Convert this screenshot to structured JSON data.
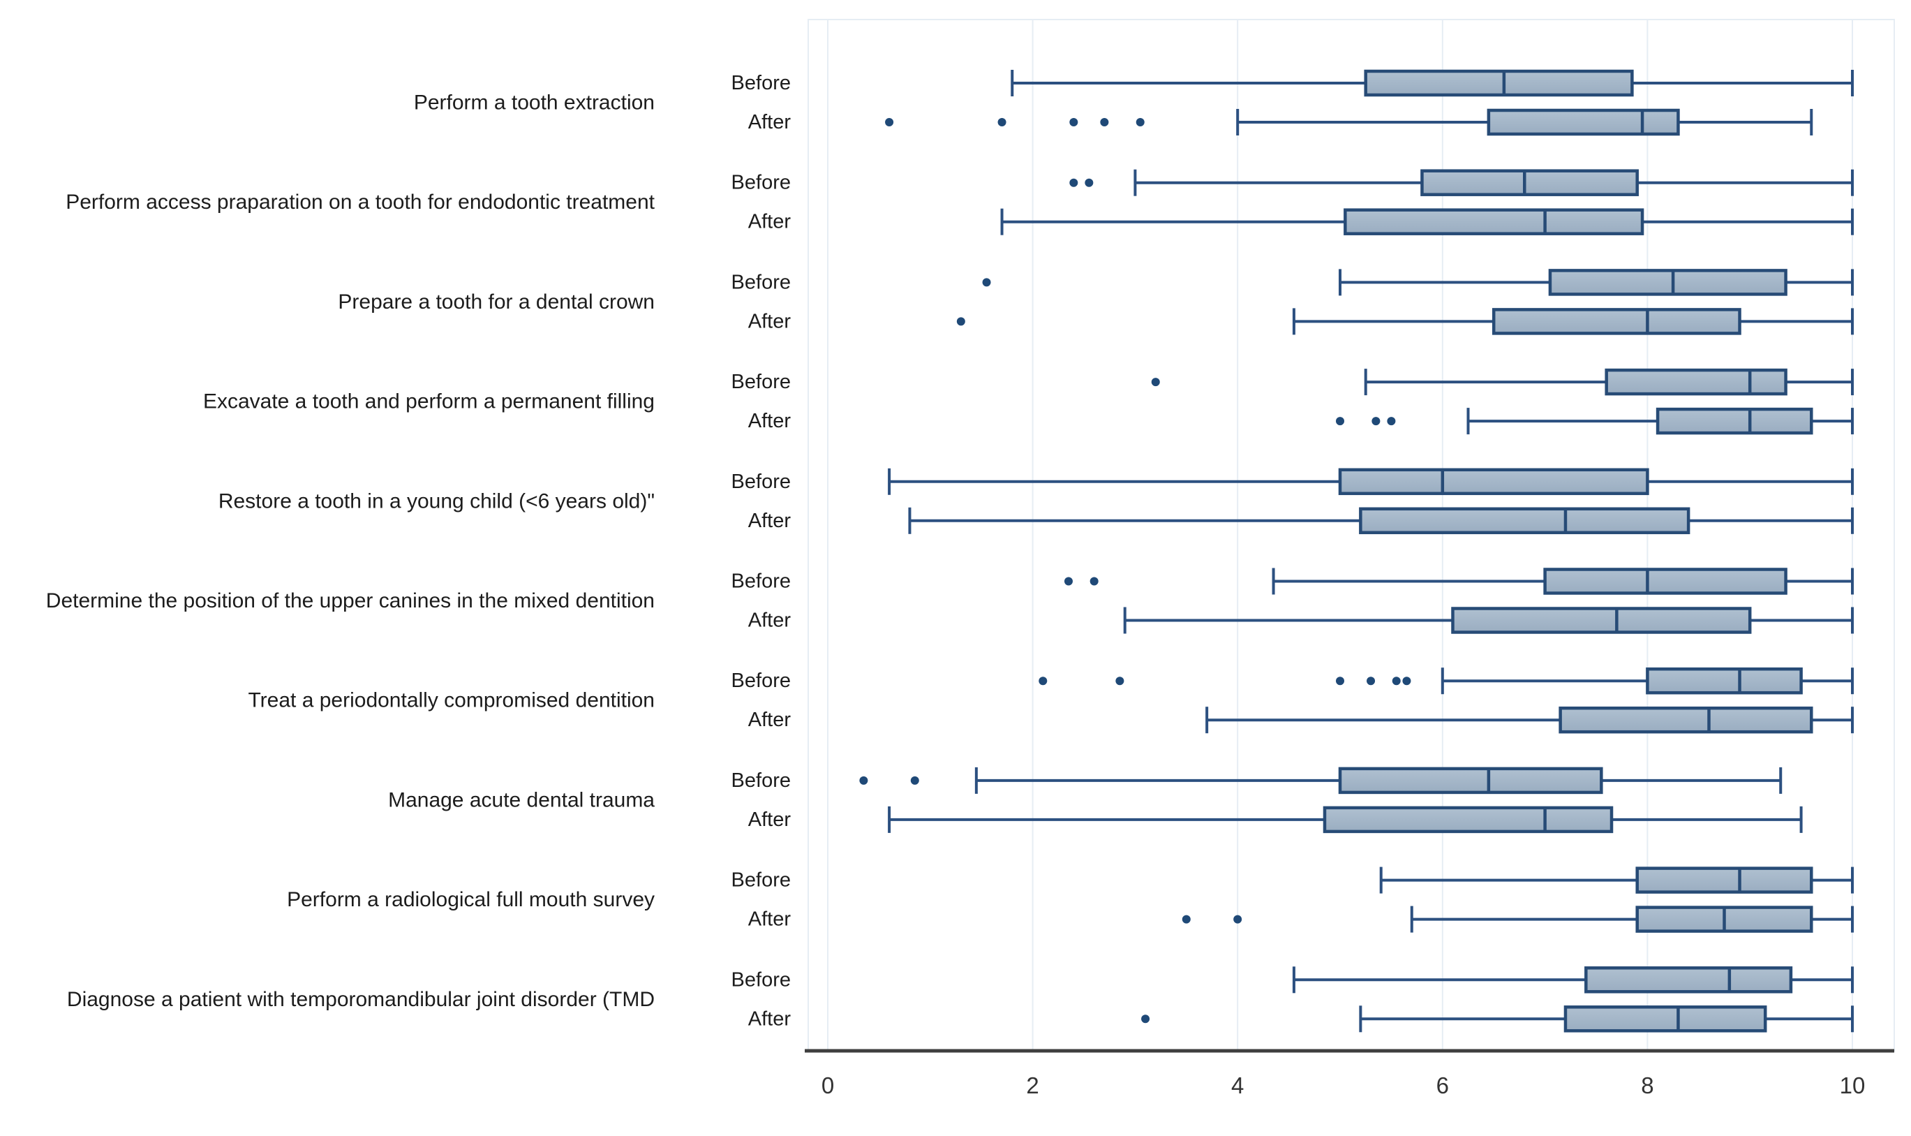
{
  "chart_data": {
    "type": "boxplot",
    "orientation": "horizontal",
    "title": "",
    "xlabel": "",
    "ylabel": "",
    "xlim": [
      0,
      10
    ],
    "xticks": [
      0,
      2,
      4,
      6,
      8,
      10
    ],
    "xtick_labels": [
      "0",
      "2",
      "4",
      "6",
      "8",
      "10"
    ],
    "grid": "vertical-light",
    "group_labels": {
      "before": "Before",
      "after": "After"
    },
    "categories": [
      {
        "label": "Perform a tooth extraction",
        "before": {
          "whisker_low": 1.8,
          "q1": 5.25,
          "median": 6.6,
          "q3": 7.85,
          "whisker_high": 10.0,
          "outliers": []
        },
        "after": {
          "whisker_low": 4.0,
          "q1": 6.45,
          "median": 7.95,
          "q3": 8.3,
          "whisker_high": 9.6,
          "outliers": [
            0.6,
            1.7,
            2.4,
            2.7,
            3.05
          ]
        }
      },
      {
        "label": "Perform access praparation on a tooth for endodontic treatment",
        "before": {
          "whisker_low": 3.0,
          "q1": 5.8,
          "median": 6.8,
          "q3": 7.9,
          "whisker_high": 10.0,
          "outliers": [
            2.4,
            2.55
          ]
        },
        "after": {
          "whisker_low": 1.7,
          "q1": 5.05,
          "median": 7.0,
          "q3": 7.95,
          "whisker_high": 10.0,
          "outliers": []
        }
      },
      {
        "label": "Prepare a tooth for a dental crown",
        "before": {
          "whisker_low": 5.0,
          "q1": 7.05,
          "median": 8.25,
          "q3": 9.35,
          "whisker_high": 10.0,
          "outliers": [
            1.55
          ]
        },
        "after": {
          "whisker_low": 4.55,
          "q1": 6.5,
          "median": 8.0,
          "q3": 8.9,
          "whisker_high": 10.0,
          "outliers": [
            1.3
          ]
        }
      },
      {
        "label": "Excavate a tooth and perform a permanent filling",
        "before": {
          "whisker_low": 5.25,
          "q1": 7.6,
          "median": 9.0,
          "q3": 9.35,
          "whisker_high": 10.0,
          "outliers": [
            3.2
          ]
        },
        "after": {
          "whisker_low": 6.25,
          "q1": 8.1,
          "median": 9.0,
          "q3": 9.6,
          "whisker_high": 10.0,
          "outliers": [
            5.0,
            5.35,
            5.5
          ]
        }
      },
      {
        "label": "Restore a tooth in a young child (<6 years old)\"",
        "before": {
          "whisker_low": 0.6,
          "q1": 5.0,
          "median": 6.0,
          "q3": 8.0,
          "whisker_high": 10.0,
          "outliers": []
        },
        "after": {
          "whisker_low": 0.8,
          "q1": 5.2,
          "median": 7.2,
          "q3": 8.4,
          "whisker_high": 10.0,
          "outliers": []
        }
      },
      {
        "label": "Determine the position of the upper canines in the mixed dentition",
        "before": {
          "whisker_low": 4.35,
          "q1": 7.0,
          "median": 8.0,
          "q3": 9.35,
          "whisker_high": 10.0,
          "outliers": [
            2.35,
            2.6
          ]
        },
        "after": {
          "whisker_low": 2.9,
          "q1": 6.1,
          "median": 7.7,
          "q3": 9.0,
          "whisker_high": 10.0,
          "outliers": []
        }
      },
      {
        "label": "Treat a periodontally compromised dentition",
        "before": {
          "whisker_low": 6.0,
          "q1": 8.0,
          "median": 8.9,
          "q3": 9.5,
          "whisker_high": 10.0,
          "outliers": [
            2.1,
            2.85,
            5.0,
            5.3,
            5.55,
            5.65
          ]
        },
        "after": {
          "whisker_low": 3.7,
          "q1": 7.15,
          "median": 8.6,
          "q3": 9.6,
          "whisker_high": 10.0,
          "outliers": []
        }
      },
      {
        "label": "Manage acute dental trauma",
        "before": {
          "whisker_low": 1.45,
          "q1": 5.0,
          "median": 6.45,
          "q3": 7.55,
          "whisker_high": 9.3,
          "outliers": [
            0.35,
            0.85
          ]
        },
        "after": {
          "whisker_low": 0.6,
          "q1": 4.85,
          "median": 7.0,
          "q3": 7.65,
          "whisker_high": 9.5,
          "outliers": []
        }
      },
      {
        "label": "Perform a radiological full mouth survey",
        "before": {
          "whisker_low": 5.4,
          "q1": 7.9,
          "median": 8.9,
          "q3": 9.6,
          "whisker_high": 10.0,
          "outliers": []
        },
        "after": {
          "whisker_low": 5.7,
          "q1": 7.9,
          "median": 8.75,
          "q3": 9.6,
          "whisker_high": 10.0,
          "outliers": [
            3.5,
            4.0
          ]
        }
      },
      {
        "label": "Diagnose a patient with temporomandibular  joint disorder (TMD",
        "before": {
          "whisker_low": 4.55,
          "q1": 7.4,
          "median": 8.8,
          "q3": 9.4,
          "whisker_high": 10.0,
          "outliers": []
        },
        "after": {
          "whisker_low": 5.2,
          "q1": 7.2,
          "median": 8.3,
          "q3": 9.15,
          "whisker_high": 10.0,
          "outliers": [
            3.1
          ]
        }
      }
    ],
    "colors": {
      "box_fill_top": "#AFC0D0",
      "box_fill_bottom": "#9AADC1",
      "box_stroke": "#274B76",
      "whisker": "#2C5080",
      "outlier_dot": "#1F4977",
      "gridline": "#E6EDF4",
      "plot_border": "#E6EDF4",
      "axis_line": "#3F3F3F",
      "tick_text": "#333333",
      "label_text": "#1C1C1C",
      "background": "#FFFFFF"
    }
  }
}
